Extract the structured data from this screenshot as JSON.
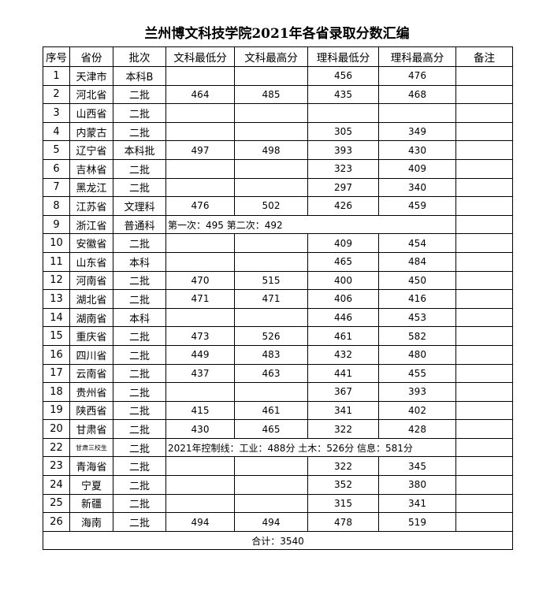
{
  "header": {
    "title": "兰州博文科技学院2021年各省录取分数汇编"
  },
  "table": {
    "columns": [
      "序号",
      "省份",
      "批次",
      "文科最低分",
      "文科最高分",
      "理科最低分",
      "理科最高分",
      "备注"
    ],
    "rows": [
      [
        1,
        "天津市",
        "本科B",
        null,
        null,
        456,
        476,
        null
      ],
      [
        2,
        "河北省",
        "二批",
        464,
        485,
        435,
        468,
        null
      ],
      [
        3,
        "山西省",
        "二批",
        null,
        null,
        null,
        null,
        null
      ],
      [
        4,
        "内蒙古",
        "二批",
        null,
        null,
        305,
        349,
        null
      ],
      [
        5,
        "辽宁省",
        "本科批",
        497,
        498,
        393,
        430,
        null
      ],
      [
        6,
        "吉林省",
        "二批",
        null,
        null,
        323,
        409,
        null
      ],
      [
        7,
        "黑龙江",
        "二批",
        null,
        null,
        297,
        340,
        null
      ],
      [
        8,
        "江苏省",
        "文理科",
        476,
        502,
        426,
        459,
        null
      ],
      [
        9,
        "浙江省",
        "普通科",
        "第一次：495  第二次：492"
      ],
      [
        10,
        "安徽省",
        "二批",
        null,
        null,
        409,
        454,
        null
      ],
      [
        11,
        "山东省",
        "本科",
        null,
        null,
        465,
        484,
        null
      ],
      [
        12,
        "河南省",
        "二批",
        470,
        515,
        400,
        450,
        null
      ],
      [
        13,
        "湖北省",
        "二批",
        471,
        471,
        406,
        416,
        null
      ],
      [
        14,
        "湖南省",
        "本科",
        null,
        null,
        446,
        453,
        null
      ],
      [
        15,
        "重庆省",
        "二批",
        473,
        526,
        461,
        582,
        null
      ],
      [
        16,
        "四川省",
        "二批",
        449,
        483,
        432,
        480,
        null
      ],
      [
        17,
        "云南省",
        "二批",
        437,
        463,
        441,
        455,
        null
      ],
      [
        18,
        "贵州省",
        "二批",
        null,
        null,
        367,
        393,
        null
      ],
      [
        19,
        "陕西省",
        "二批",
        415,
        461,
        341,
        402,
        null
      ],
      [
        20,
        "甘肃省",
        "二批",
        430,
        465,
        322,
        428,
        null
      ],
      [
        22,
        "甘肃三校生",
        "二批",
        "2021年控制线：工业：488分  土木：526分  信息：581分"
      ],
      [
        23,
        "青海省",
        "二批",
        null,
        null,
        322,
        345,
        null
      ],
      [
        24,
        "宁夏",
        "二批",
        null,
        null,
        352,
        380,
        null
      ],
      [
        25,
        "新疆",
        "二批",
        null,
        null,
        315,
        341,
        null
      ],
      [
        26,
        "海南",
        "二批",
        494,
        494,
        478,
        519,
        null
      ]
    ],
    "footer": "合计：3540"
  }
}
